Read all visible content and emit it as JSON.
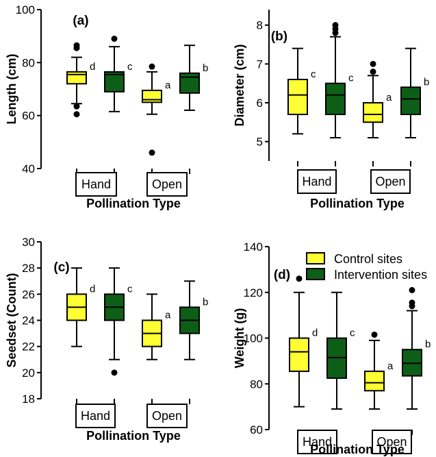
{
  "colors": {
    "control": "#FFFF33",
    "intervention": "#0D5F18",
    "axis": "#000000"
  },
  "chart_data": [
    {
      "type": "box",
      "panel_label": "(a)",
      "ylabel": "Length (cm)",
      "xlabel": "Pollination Type",
      "ylim": [
        40,
        100
      ],
      "yticks": [
        40,
        60,
        80,
        100
      ],
      "groups": [
        "Hand",
        "Open"
      ],
      "series": [
        {
          "group": "Hand",
          "site": "Control sites",
          "min": 64.5,
          "q1": 72,
          "median": 75.5,
          "q3": 76.5,
          "max": 82,
          "outliers": [
            86.5,
            85.5,
            63.5,
            60.5
          ],
          "letter": "d"
        },
        {
          "group": "Hand",
          "site": "Intervention sites",
          "min": 61.5,
          "q1": 69,
          "median": 75.5,
          "q3": 76.5,
          "max": 86,
          "outliers": [
            89
          ],
          "letter": "c"
        },
        {
          "group": "Open",
          "site": "Control sites",
          "min": 60.5,
          "q1": 65,
          "median": 66,
          "q3": 69.5,
          "max": 76.5,
          "outliers": [
            78.5,
            46
          ],
          "letter": "a"
        },
        {
          "group": "Open",
          "site": "Intervention sites",
          "min": 62,
          "q1": 68.5,
          "median": 74.5,
          "q3": 76,
          "max": 86.5,
          "outliers": [],
          "letter": "b"
        }
      ]
    },
    {
      "type": "box",
      "panel_label": "(b)",
      "ylabel": "Diameter (cm)",
      "xlabel": "Pollination Type",
      "ylim": [
        4.5,
        8.4
      ],
      "yticks": [
        5,
        6,
        7,
        8
      ],
      "groups": [
        "Hand",
        "Open"
      ],
      "series": [
        {
          "group": "Hand",
          "site": "Control sites",
          "min": 5.2,
          "q1": 5.7,
          "median": 6.2,
          "q3": 6.6,
          "max": 7.4,
          "outliers": [],
          "letter": "c"
        },
        {
          "group": "Hand",
          "site": "Intervention sites",
          "min": 5.1,
          "q1": 5.7,
          "median": 6.2,
          "q3": 6.5,
          "max": 7.7,
          "outliers": [
            7.8,
            7.9,
            8.0
          ],
          "letter": "c"
        },
        {
          "group": "Open",
          "site": "Control sites",
          "min": 5.1,
          "q1": 5.5,
          "median": 5.7,
          "q3": 6.0,
          "max": 6.7,
          "outliers": [
            6.8,
            7.0
          ],
          "letter": "a"
        },
        {
          "group": "Open",
          "site": "Intervention sites",
          "min": 5.1,
          "q1": 5.7,
          "median": 6.1,
          "q3": 6.4,
          "max": 7.4,
          "outliers": [],
          "letter": "b"
        }
      ]
    },
    {
      "type": "box",
      "panel_label": "(c)",
      "ylabel": "Seedset (Count)",
      "xlabel": "Pollination Type",
      "ylim": [
        18,
        30
      ],
      "yticks": [
        18,
        20,
        22,
        24,
        26,
        28,
        30
      ],
      "groups": [
        "Hand",
        "Open"
      ],
      "series": [
        {
          "group": "Hand",
          "site": "Control sites",
          "min": 22,
          "q1": 24,
          "median": 25,
          "q3": 26,
          "max": 28,
          "outliers": [],
          "letter": "d"
        },
        {
          "group": "Hand",
          "site": "Intervention sites",
          "min": 21,
          "q1": 24,
          "median": 25,
          "q3": 26,
          "max": 28,
          "outliers": [
            20
          ],
          "letter": "c"
        },
        {
          "group": "Open",
          "site": "Control sites",
          "min": 21,
          "q1": 22,
          "median": 23,
          "q3": 24,
          "max": 26,
          "outliers": [],
          "letter": "a"
        },
        {
          "group": "Open",
          "site": "Intervention sites",
          "min": 21,
          "q1": 23,
          "median": 24,
          "q3": 25,
          "max": 27,
          "outliers": [],
          "letter": "b"
        }
      ]
    },
    {
      "type": "box",
      "panel_label": "(d)",
      "ylabel": "Weight (g)",
      "xlabel": "Pollination Type",
      "ylim": [
        60,
        140
      ],
      "yticks": [
        60,
        80,
        100,
        120,
        140
      ],
      "groups": [
        "Hand",
        "Open"
      ],
      "legend": [
        "Control sites",
        "Intervention sites"
      ],
      "series": [
        {
          "group": "Hand",
          "site": "Control sites",
          "min": 70,
          "q1": 85.5,
          "median": 94,
          "q3": 100,
          "max": 120,
          "outliers": [
            126
          ],
          "letter": "d"
        },
        {
          "group": "Hand",
          "site": "Intervention sites",
          "min": 69,
          "q1": 82.5,
          "median": 91.5,
          "q3": 100,
          "max": 120,
          "outliers": [],
          "letter": "c"
        },
        {
          "group": "Open",
          "site": "Control sites",
          "min": 69,
          "q1": 77,
          "median": 80.5,
          "q3": 85.5,
          "max": 99,
          "outliers": [
            101.5
          ],
          "letter": "a"
        },
        {
          "group": "Open",
          "site": "Intervention sites",
          "min": 69,
          "q1": 83.5,
          "median": 89,
          "q3": 95,
          "max": 112,
          "outliers": [
            114,
            115.5,
            121
          ],
          "letter": "b"
        }
      ]
    }
  ]
}
